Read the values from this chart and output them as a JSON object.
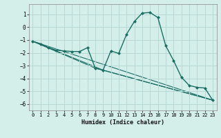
{
  "xlabel": "Humidex (Indice chaleur)",
  "ylabel": "",
  "background_color": "#d4eeea",
  "grid_color": "#b8d8d4",
  "line_color": "#1a6e64",
  "marker_color": "#1a6e64",
  "series1_x": [
    0,
    1,
    2,
    3,
    4,
    5,
    6,
    7,
    8,
    9,
    10,
    11,
    12,
    13,
    14,
    15,
    16,
    17,
    18,
    19,
    20,
    21,
    22,
    23
  ],
  "series1_y": [
    -1.1,
    -1.3,
    -1.6,
    -1.8,
    -1.85,
    -1.9,
    -1.9,
    -1.6,
    -3.2,
    -3.35,
    -1.85,
    -2.05,
    -0.55,
    0.45,
    1.1,
    1.15,
    0.75,
    -1.45,
    -2.6,
    -3.9,
    -4.55,
    -4.7,
    -4.75,
    -5.7
  ],
  "series2_x": [
    0,
    23
  ],
  "series2_y": [
    -1.1,
    -5.7
  ],
  "series3_x": [
    0,
    9,
    23
  ],
  "series3_y": [
    -1.1,
    -3.35,
    -5.7
  ],
  "series4_x": [
    0,
    8,
    23
  ],
  "series4_y": [
    -1.1,
    -3.2,
    -5.7
  ],
  "ylim": [
    -6.5,
    1.8
  ],
  "xlim": [
    -0.5,
    23.5
  ],
  "yticks": [
    -6,
    -5,
    -4,
    -3,
    -2,
    -1,
    0,
    1
  ],
  "xticks": [
    0,
    1,
    2,
    3,
    4,
    5,
    6,
    7,
    8,
    9,
    10,
    11,
    12,
    13,
    14,
    15,
    16,
    17,
    18,
    19,
    20,
    21,
    22,
    23
  ]
}
